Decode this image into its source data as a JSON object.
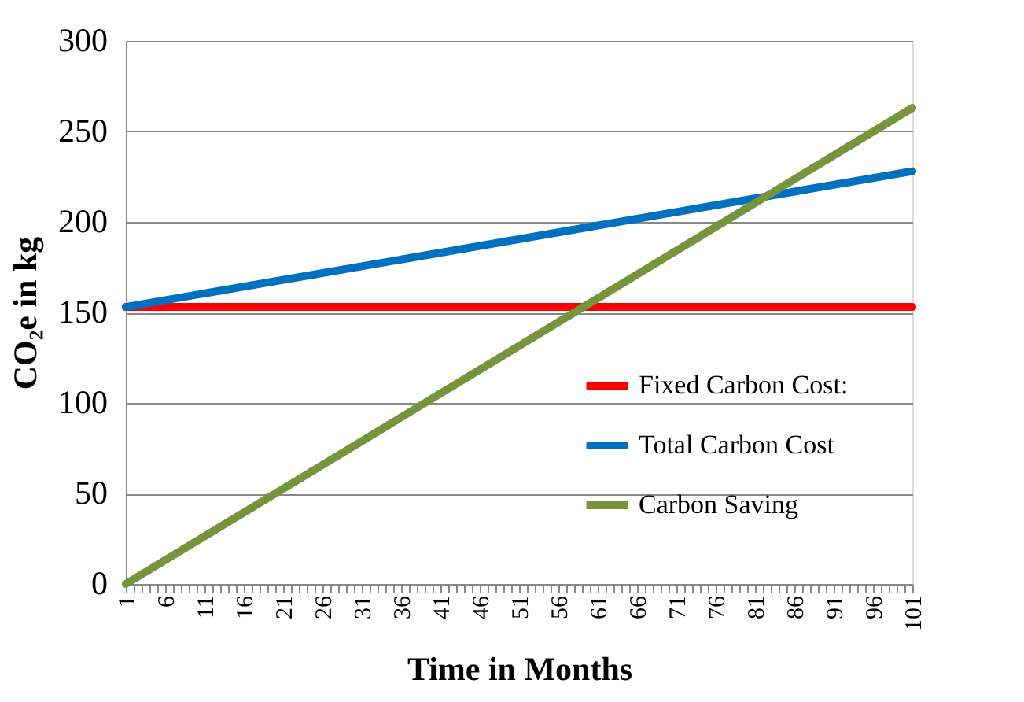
{
  "chart_data": {
    "type": "line",
    "xlabel": "Time in Months",
    "ylabel": "CO₂e in kg",
    "x": [
      1,
      101
    ],
    "series": [
      {
        "name": "Fixed Carbon Cost:",
        "color": "#ff0000",
        "values": [
          153,
          153
        ]
      },
      {
        "name": "Total Carbon Cost",
        "color": "#0070c0",
        "values": [
          153,
          228
        ]
      },
      {
        "name": "Carbon Saving",
        "color": "#77933c",
        "values": [
          0,
          263
        ]
      }
    ],
    "xlim": [
      1,
      101
    ],
    "ylim": [
      0,
      300
    ],
    "yticks": [
      0,
      50,
      100,
      150,
      200,
      250,
      300
    ],
    "xticks": [
      1,
      {
        "value": 2,
        "label": null
      },
      {
        "value": 3,
        "label": null
      },
      {
        "value": 4,
        "label": null
      },
      {
        "value": 5,
        "label": null
      },
      6,
      {
        "value": 7,
        "label": null
      },
      {
        "value": 8,
        "label": null
      },
      {
        "value": 9,
        "label": null
      },
      {
        "value": 10,
        "label": null
      },
      11,
      {
        "value": 12,
        "label": null
      },
      {
        "value": 13,
        "label": null
      },
      {
        "value": 14,
        "label": null
      },
      {
        "value": 15,
        "label": null
      },
      16,
      {
        "value": 17,
        "label": null
      },
      {
        "value": 18,
        "label": null
      },
      {
        "value": 19,
        "label": null
      },
      {
        "value": 20,
        "label": null
      },
      21,
      {
        "value": 22,
        "label": null
      },
      {
        "value": 23,
        "label": null
      },
      {
        "value": 24,
        "label": null
      },
      {
        "value": 25,
        "label": null
      },
      26,
      {
        "value": 27,
        "label": null
      },
      {
        "value": 28,
        "label": null
      },
      {
        "value": 29,
        "label": null
      },
      {
        "value": 30,
        "label": null
      },
      31,
      {
        "value": 32,
        "label": null
      },
      {
        "value": 33,
        "label": null
      },
      {
        "value": 34,
        "label": null
      },
      {
        "value": 35,
        "label": null
      },
      36,
      {
        "value": 37,
        "label": null
      },
      {
        "value": 38,
        "label": null
      },
      {
        "value": 39,
        "label": null
      },
      {
        "value": 40,
        "label": null
      },
      41,
      {
        "value": 42,
        "label": null
      },
      {
        "value": 43,
        "label": null
      },
      {
        "value": 44,
        "label": null
      },
      {
        "value": 45,
        "label": null
      },
      46,
      {
        "value": 47,
        "label": null
      },
      {
        "value": 48,
        "label": null
      },
      {
        "value": 49,
        "label": null
      },
      {
        "value": 50,
        "label": null
      },
      51,
      {
        "value": 52,
        "label": null
      },
      {
        "value": 53,
        "label": null
      },
      {
        "value": 54,
        "label": null
      },
      {
        "value": 55,
        "label": null
      },
      56,
      {
        "value": 57,
        "label": null
      },
      {
        "value": 58,
        "label": null
      },
      {
        "value": 59,
        "label": null
      },
      {
        "value": 60,
        "label": null
      },
      61,
      {
        "value": 62,
        "label": null
      },
      {
        "value": 63,
        "label": null
      },
      {
        "value": 64,
        "label": null
      },
      {
        "value": 65,
        "label": null
      },
      66,
      {
        "value": 67,
        "label": null
      },
      {
        "value": 68,
        "label": null
      },
      {
        "value": 69,
        "label": null
      },
      {
        "value": 70,
        "label": null
      },
      71,
      {
        "value": 72,
        "label": null
      },
      {
        "value": 73,
        "label": null
      },
      {
        "value": 74,
        "label": null
      },
      {
        "value": 75,
        "label": null
      },
      76,
      {
        "value": 77,
        "label": null
      },
      {
        "value": 78,
        "label": null
      },
      {
        "value": 79,
        "label": null
      },
      {
        "value": 80,
        "label": null
      },
      81,
      {
        "value": 82,
        "label": null
      },
      {
        "value": 83,
        "label": null
      },
      {
        "value": 84,
        "label": null
      },
      {
        "value": 85,
        "label": null
      },
      86,
      {
        "value": 87,
        "label": null
      },
      {
        "value": 88,
        "label": null
      },
      {
        "value": 89,
        "label": null
      },
      {
        "value": 90,
        "label": null
      },
      91,
      {
        "value": 92,
        "label": null
      },
      {
        "value": 93,
        "label": null
      },
      {
        "value": 94,
        "label": null
      },
      {
        "value": 95,
        "label": null
      },
      96,
      {
        "value": 97,
        "label": null
      },
      {
        "value": 98,
        "label": null
      },
      {
        "value": 99,
        "label": null
      },
      {
        "value": 100,
        "label": null
      },
      101
    ],
    "grid": "y",
    "legend": "bottom right",
    "marker": "none",
    "line_style": "solid"
  }
}
